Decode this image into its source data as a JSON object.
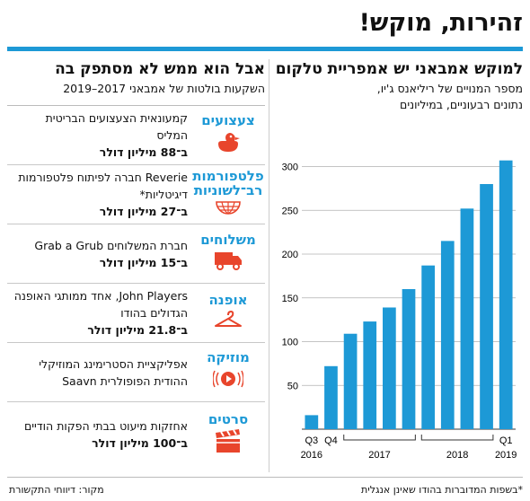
{
  "headline": "זהירות, מוקש!",
  "left": {
    "title": "אבל הוא ממש לא מסתפק בה",
    "subtitle": "השקעות בולטות של אמבאני 2017–2019",
    "items": [
      {
        "category": "צעצועים",
        "icon": "rubber-duck-icon",
        "text": "קמעונאית הצעצועים הבריטית המליס",
        "amount": "ב־88 מיליון דולר"
      },
      {
        "category": "פלטפורמות רב־לשוניות",
        "icon": "globe-icon",
        "text": "Reverie חברה לפיתוח פלטפורמות דיגיטליות*",
        "amount": "ב־27 מיליון דולר"
      },
      {
        "category": "משלוחים",
        "icon": "delivery-truck-icon",
        "text": "חברת המשלוחים Grab a Grub",
        "amount": "ב־15 מיליון דולר"
      },
      {
        "category": "אופנה",
        "icon": "hanger-icon",
        "text": "John Players, אחד ממותגי האופנה הגדולים בהודו",
        "amount": "ב־21.8 מיליון דולר"
      },
      {
        "category": "מוזיקה",
        "icon": "music-play-icon",
        "text": "אפליקציית הסטרימינג המוזיקלי ההודית הפופולרית Saavn",
        "amount": ""
      },
      {
        "category": "סרטים",
        "icon": "film-clapper-icon",
        "text": "אחזקות מיעוט בבתי הפקות הודיים",
        "amount": "ב־100 מיליון דולר"
      }
    ]
  },
  "right": {
    "title": "למוקש אמבאני יש אמפריית טלקום",
    "subtitle_line1": "מספר המנויים של ריליאנס ג'יו,",
    "subtitle_line2": "נתונים רבעוניים, במיליונים"
  },
  "chart_data": {
    "type": "bar",
    "categories": [
      "Q3 2016",
      "Q4 2016",
      "Q1 2017",
      "Q2 2017",
      "Q3 2017",
      "Q4 2017",
      "Q1 2018",
      "Q2 2018",
      "Q3 2018",
      "Q4 2018",
      "Q1 2019"
    ],
    "values": [
      16,
      72,
      109,
      123,
      139,
      160,
      187,
      215,
      252,
      280,
      307
    ],
    "ylim": [
      0,
      320
    ],
    "yticks": [
      0,
      50,
      100,
      150,
      200,
      250,
      300
    ],
    "x_labels": [
      {
        "text": "Q3",
        "sub": "2016",
        "from": 0,
        "to": 0
      },
      {
        "text": "Q4",
        "sub": "",
        "from": 1,
        "to": 1
      },
      {
        "text": "",
        "sub": "2017",
        "from": 2,
        "to": 5
      },
      {
        "text": "",
        "sub": "2018",
        "from": 6,
        "to": 9
      },
      {
        "text": "Q1",
        "sub": "2019",
        "from": 10,
        "to": 10
      }
    ],
    "grid": true,
    "colors": {
      "bar": "#1d99d6",
      "grid": "#b0b0b0"
    }
  },
  "footer": {
    "note": "*בשפות המדוברות בהודו שאינן אנגלית",
    "source": "מקור: דיווחי התקשורת"
  },
  "colors": {
    "accent": "#1d99d6",
    "icon": "#e8452c"
  }
}
